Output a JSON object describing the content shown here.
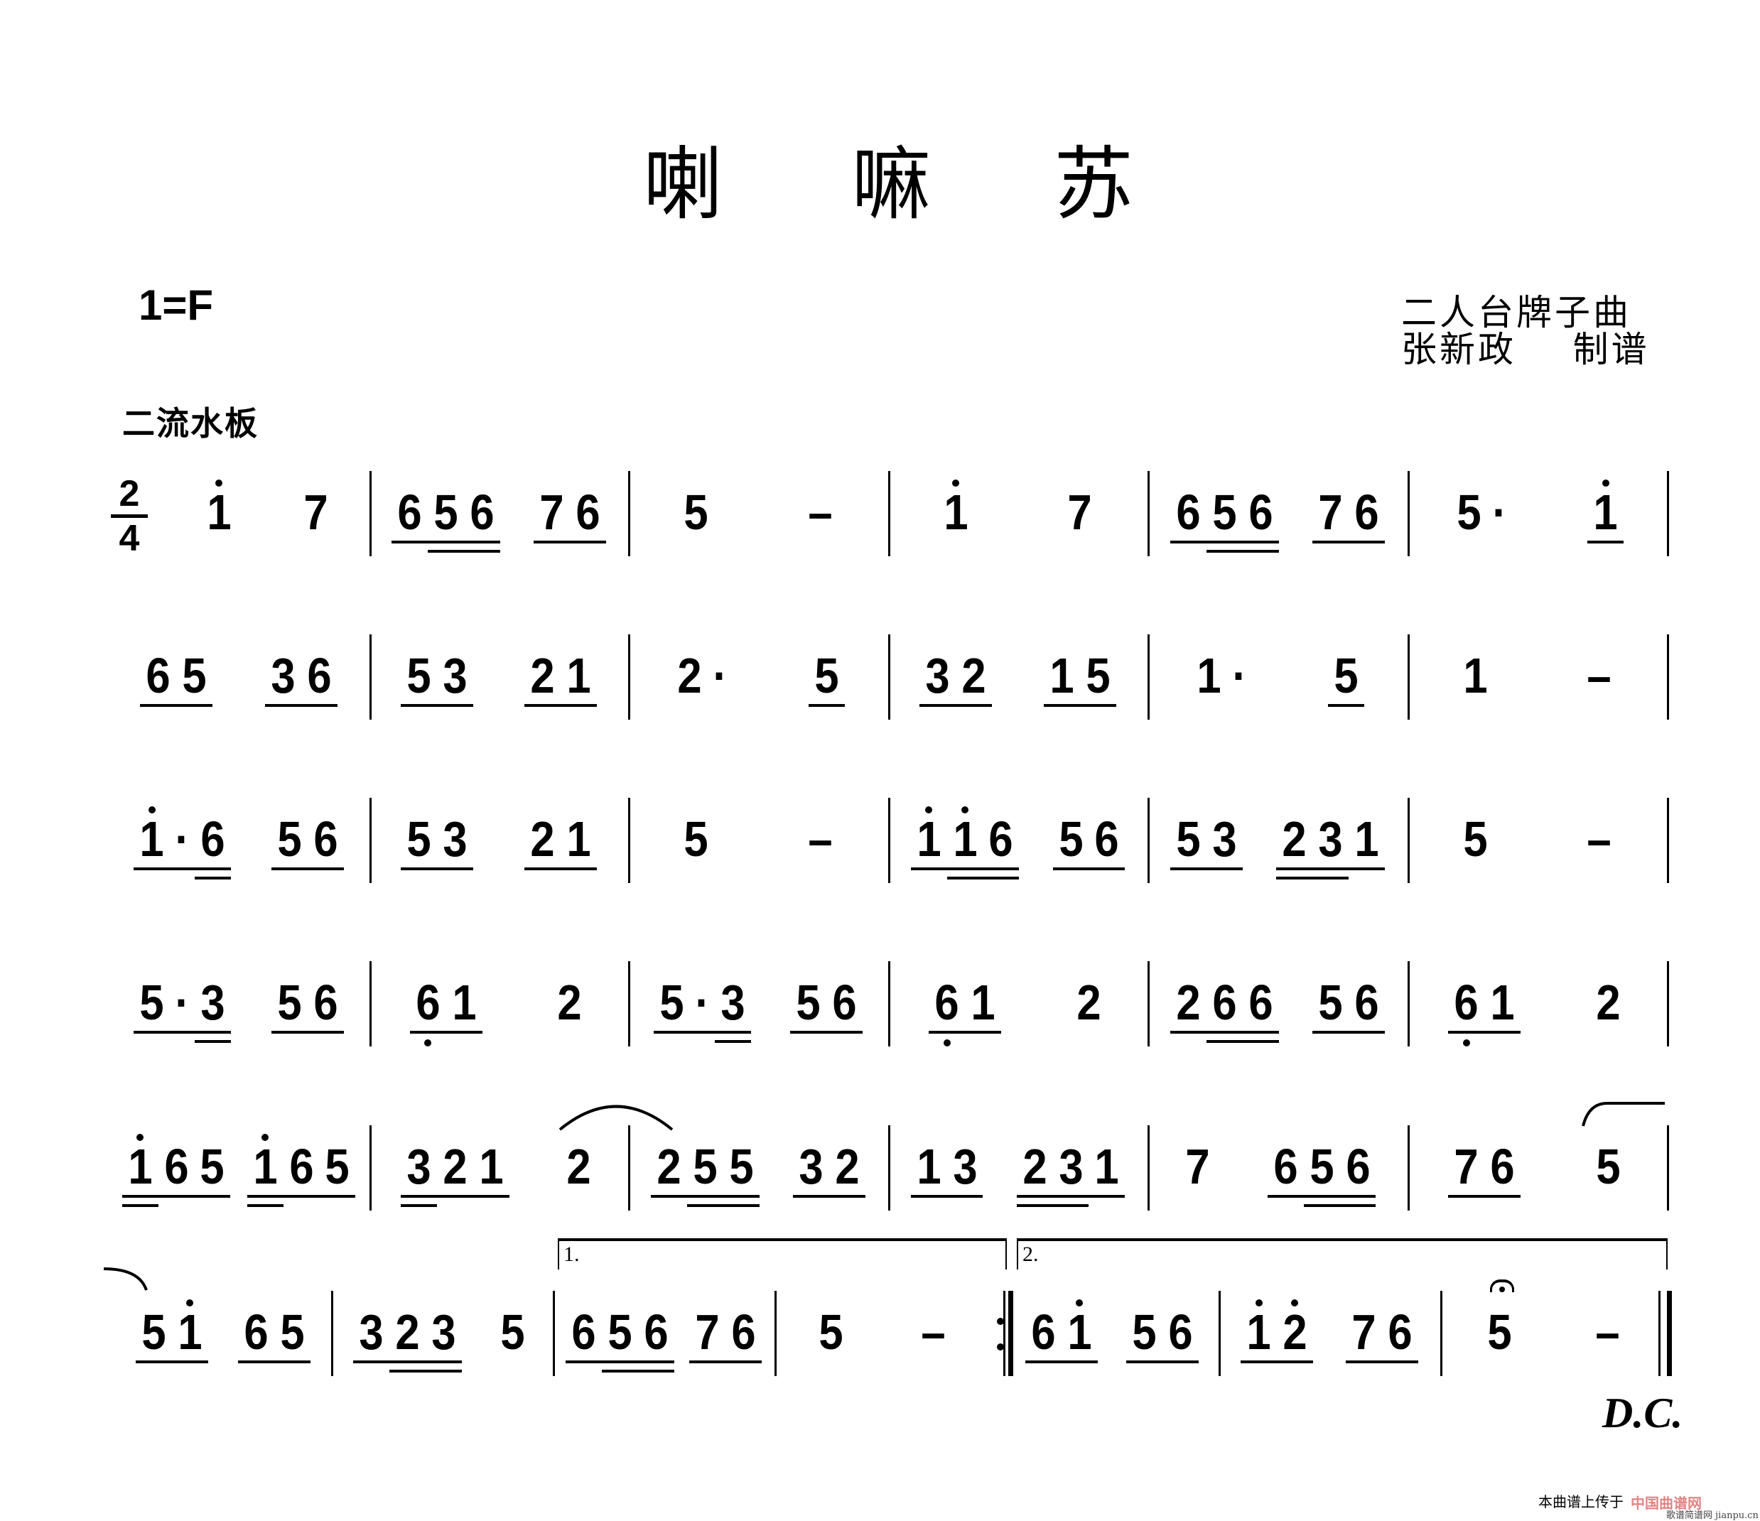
{
  "title": [
    "喇",
    "嘛",
    "苏"
  ],
  "key": "1=F",
  "composer": [
    "二人台牌子曲",
    "张新政    制谱"
  ],
  "tempo": "二流水板",
  "time_signature": {
    "top": "2",
    "bottom": "4"
  },
  "volta": [
    "1.",
    "2."
  ],
  "ending": "D.C.",
  "watermark": {
    "text": "本曲谱上传于",
    "logo": "中国曲谱网",
    "site": "歌谱简谱网 jianpu.cn"
  },
  "rows": [
    [
      [
        [
          "1'"
        ],
        [
          "7"
        ]
      ],
      [
        [
          "6:1",
          "5:2",
          "6:2"
        ],
        [
          "7:1",
          "6:1"
        ]
      ],
      [
        [
          "5"
        ],
        [
          "–"
        ]
      ],
      [
        [
          "1'"
        ],
        [
          "7"
        ]
      ],
      [
        [
          "6:1",
          "5:2",
          "6:2"
        ],
        [
          "7:1",
          "6:1"
        ]
      ],
      [
        [
          "5",
          "·"
        ],
        [
          "1':1"
        ]
      ]
    ],
    [
      [
        [
          "6:1",
          "5:1"
        ],
        [
          "3:1",
          "6:1"
        ]
      ],
      [
        [
          "5:1",
          "3:1"
        ],
        [
          "2:1",
          "1:1"
        ]
      ],
      [
        [
          "2",
          "·"
        ],
        [
          "5:1"
        ]
      ],
      [
        [
          "3:1",
          "2:1"
        ],
        [
          "1:1",
          "5:1"
        ]
      ],
      [
        [
          "1",
          "·"
        ],
        [
          "5:1"
        ]
      ],
      [
        [
          "1"
        ],
        [
          "–"
        ]
      ]
    ],
    [
      [
        [
          "1':1",
          "·:1",
          "6:2"
        ],
        [
          "5:1",
          "6:1"
        ]
      ],
      [
        [
          "5:1",
          "3:1"
        ],
        [
          "2:1",
          "1:1"
        ]
      ],
      [
        [
          "5"
        ],
        [
          "–"
        ]
      ],
      [
        [
          "1':1",
          "1':2",
          "6:2"
        ],
        [
          "5:1",
          "6:1"
        ]
      ],
      [
        [
          "5:1",
          "3:1"
        ],
        [
          "2:2",
          "3:2",
          "1:1"
        ]
      ],
      [
        [
          "5"
        ],
        [
          "–"
        ]
      ]
    ],
    [
      [
        [
          "5:1",
          "·:1",
          "3:2"
        ],
        [
          "5:1",
          "6:1"
        ]
      ],
      [
        [
          "6,:1",
          "1:1"
        ],
        [
          "2"
        ]
      ],
      [
        [
          "5:1",
          "·:1",
          "3:2"
        ],
        [
          "5:1",
          "6:1"
        ]
      ],
      [
        [
          "6,:1",
          "1:1"
        ],
        [
          "2"
        ]
      ],
      [
        [
          "2:1",
          "6:2",
          "6:2"
        ],
        [
          "5:1",
          "6:1"
        ]
      ],
      [
        [
          "6,:1",
          "1:1"
        ],
        [
          "2"
        ]
      ]
    ],
    [
      [
        [
          "1':2",
          "6:1",
          "5:1"
        ],
        [
          "1':2",
          "6:1",
          "5:1"
        ]
      ],
      [
        [
          "3:2",
          "2:1",
          "1:1"
        ],
        [
          "2"
        ]
      ],
      [
        [
          "2:1",
          "5:2",
          "5:2"
        ],
        [
          "3:1",
          "2:1"
        ]
      ],
      [
        [
          "1:1",
          "3:1"
        ],
        [
          "2:2",
          "3:2",
          "1:1"
        ]
      ],
      [
        [
          "7"
        ],
        [
          "6:1",
          "5:2",
          "6:2"
        ]
      ],
      [
        [
          "7:1",
          "6:1"
        ],
        [
          "5"
        ]
      ]
    ],
    [
      [
        [
          "5:1",
          "1':1"
        ],
        [
          "6:1",
          "5:1"
        ]
      ],
      [
        [
          "3:1",
          "2:2",
          "3:2"
        ],
        [
          "5"
        ]
      ],
      [
        [
          "6:1",
          "5:2",
          "6:2"
        ],
        [
          "7:1",
          "6:1"
        ]
      ],
      [
        [
          "5"
        ],
        [
          "–"
        ]
      ],
      [
        [
          "6:1",
          "1':1"
        ],
        [
          "5:1",
          "6:1"
        ]
      ],
      [
        [
          "1':1",
          "2':1"
        ],
        [
          "7:1",
          "6:1"
        ]
      ],
      [
        [
          "5~"
        ],
        [
          "–"
        ]
      ]
    ]
  ]
}
